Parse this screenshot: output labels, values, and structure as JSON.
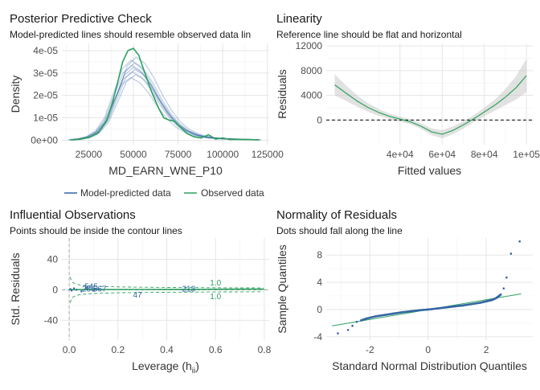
{
  "chart_data": [
    {
      "type": "line",
      "title": "Posterior Predictive Check",
      "subtitle": "Model-predicted lines should resemble observed data lin",
      "xlabel": "MD_EARN_WNE_P10",
      "ylabel": "Density",
      "xlim": [
        10000,
        126000
      ],
      "ylim": [
        -2e-06,
        4.32e-05
      ],
      "xticks": [
        25000,
        50000,
        75000,
        100000,
        125000
      ],
      "xtick_labels": [
        "25000",
        "50000",
        "75000",
        "100000",
        "125000"
      ],
      "yticks": [
        0,
        1e-05,
        2e-05,
        3e-05,
        4e-05
      ],
      "ytick_labels": [
        "0e+00",
        "1e-05",
        "2e-05",
        "3e-05",
        "4e-05"
      ],
      "grid": true,
      "legend": "bottom",
      "series": [
        {
          "name": "Model-predicted data",
          "color": "#3465a4",
          "x": [
            15000,
            20000,
            25000,
            30000,
            35000,
            40000,
            45000,
            50000,
            55000,
            60000,
            65000,
            70000,
            75000,
            80000,
            85000,
            90000,
            95000,
            100000,
            110000,
            120000
          ],
          "values": [
            2e-07,
            6e-07,
            1.5e-06,
            3.8e-06,
            9e-06,
            1.9e-05,
            2.9e-05,
            3.25e-05,
            3e-05,
            2.45e-05,
            1.75e-05,
            1.15e-05,
            7e-06,
            4.2e-06,
            2.5e-06,
            1.5e-06,
            1e-06,
            7e-07,
            4e-07,
            2e-07
          ]
        },
        {
          "name": "Observed data",
          "color": "#2ca25f",
          "x": [
            15000,
            20000,
            25000,
            30000,
            35000,
            38000,
            41000,
            44000,
            47000,
            50000,
            53000,
            56000,
            60000,
            64000,
            67000,
            70000,
            73000,
            76000,
            80000,
            84000,
            88000,
            92000,
            96000,
            100000,
            104000,
            110000,
            120000
          ],
          "values": [
            1e-07,
            4e-07,
            1.2e-06,
            3e-06,
            8.5e-06,
            1.6e-05,
            2.5e-05,
            3.5e-05,
            4e-05,
            4.1e-05,
            3.8e-05,
            3.1e-05,
            2.2e-05,
            1.45e-05,
            1e-05,
            9e-06,
            8.5e-06,
            6e-06,
            3e-06,
            1.5e-06,
            1e-06,
            2.5e-06,
            5e-07,
            1e-06,
            3e-07,
            4e-07,
            2e-07
          ]
        }
      ]
    },
    {
      "type": "line",
      "title": "Linearity",
      "subtitle": "Reference line should be flat and horizontal",
      "xlabel": "Fitted values",
      "ylabel": "Residuals",
      "xlim": [
        5000,
        103000
      ],
      "ylim": [
        -4000,
        12400
      ],
      "xticks": [
        40000,
        60000,
        80000,
        100000
      ],
      "xtick_labels": [
        "4e+04",
        "6e+04",
        "8e+04",
        "1e+05"
      ],
      "yticks": [
        0,
        4000,
        8000,
        12000
      ],
      "ytick_labels": [
        "0",
        "4000",
        "8000",
        "12000"
      ],
      "grid": true,
      "reference_line": 0,
      "series": [
        {
          "name": "",
          "color": "#2ca25f",
          "x": [
            9000,
            15000,
            20000,
            25000,
            30000,
            35000,
            40000,
            45000,
            50000,
            55000,
            60000,
            65000,
            70000,
            75000,
            80000,
            85000,
            90000,
            95000,
            100000
          ],
          "values": [
            5700,
            4200,
            3000,
            2000,
            1200,
            600,
            150,
            -300,
            -1000,
            -1900,
            -2300,
            -1700,
            -800,
            200,
            1300,
            2400,
            3700,
            5200,
            7200
          ],
          "ci_width": [
            1700,
            1200,
            900,
            700,
            550,
            450,
            400,
            400,
            450,
            550,
            650,
            650,
            600,
            600,
            700,
            900,
            1300,
            1900,
            2700
          ]
        }
      ]
    },
    {
      "type": "scatter",
      "title": "Influential Observations",
      "subtitle": "Points should be inside the contour lines",
      "xlabel": "Leverage (h",
      "xlabel_sub": "ii",
      "xlabel_end": ")",
      "ylabel": "Std. Residuals",
      "xlim": [
        -0.03,
        0.82
      ],
      "ylim": [
        -66,
        68
      ],
      "xticks": [
        0,
        0.2,
        0.4,
        0.6,
        0.8
      ],
      "xtick_labels": [
        "0.0",
        "0.2",
        "0.4",
        "0.6",
        "0.8"
      ],
      "yticks": [
        -40,
        0,
        40
      ],
      "ytick_labels": [
        "-40",
        "0",
        "40"
      ],
      "grid": true,
      "contour_labels": [
        "1.0",
        "1.0"
      ],
      "point_labels": [
        {
          "text": "545",
          "x": 0.09,
          "y": 4
        },
        {
          "text": "286",
          "x": 0.08,
          "y": 1
        },
        {
          "text": "567",
          "x": 0.125,
          "y": 1
        },
        {
          "text": "47",
          "x": 0.28,
          "y": -7
        },
        {
          "text": "213",
          "x": 0.49,
          "y": 1
        }
      ],
      "points": {
        "x": [
          0.005,
          0.01,
          0.02,
          0.03,
          0.05,
          0.07,
          0.1,
          0.12
        ],
        "y": [
          1,
          -1,
          2,
          0,
          -2,
          3,
          -1,
          1
        ]
      },
      "series": [
        {
          "name": "",
          "color": "#2ca25f",
          "x": [
            0.0,
            0.1,
            0.2,
            0.3,
            0.4,
            0.5,
            0.6,
            0.7,
            0.8
          ],
          "values": [
            0.3,
            0.4,
            0.5,
            0.5,
            0.6,
            0.7,
            0.8,
            0.9,
            1.0
          ]
        }
      ]
    },
    {
      "type": "scatter",
      "title": "Normality of Residuals",
      "subtitle": "Dots should fall along the line",
      "xlabel": "Standard Normal Distribution Quantiles",
      "ylabel": "Sample Quantiles",
      "xlim": [
        -3.5,
        3.6
      ],
      "ylim": [
        -4.5,
        10.5
      ],
      "xticks": [
        -2,
        0,
        2
      ],
      "xtick_labels": [
        "-2",
        "0",
        "2"
      ],
      "yticks": [
        -4,
        0,
        4,
        8
      ],
      "ytick_labels": [
        "-4",
        "0",
        "4",
        "8"
      ],
      "grid": true,
      "reference_line": {
        "x": [
          -3.3,
          3.2
        ],
        "y": [
          -2.4,
          2.3
        ]
      },
      "points": {
        "x": [
          -3.1,
          -2.75,
          -2.6,
          -2.45,
          -2.3,
          -2.1,
          -1.8,
          -1.5,
          -1.2,
          -0.9,
          -0.6,
          -0.3,
          0.0,
          0.3,
          0.6,
          0.9,
          1.2,
          1.5,
          1.8,
          2.0,
          2.2,
          2.35,
          2.5,
          2.6,
          2.7,
          2.85,
          3.15
        ],
        "y": [
          -3.5,
          -3.0,
          -2.4,
          -1.8,
          -1.6,
          -1.3,
          -1.0,
          -0.8,
          -0.6,
          -0.4,
          -0.25,
          -0.1,
          0.0,
          0.15,
          0.3,
          0.45,
          0.6,
          0.8,
          1.0,
          1.2,
          1.4,
          1.7,
          2.2,
          3.1,
          4.7,
          8.2,
          10.0
        ]
      },
      "series": []
    }
  ]
}
